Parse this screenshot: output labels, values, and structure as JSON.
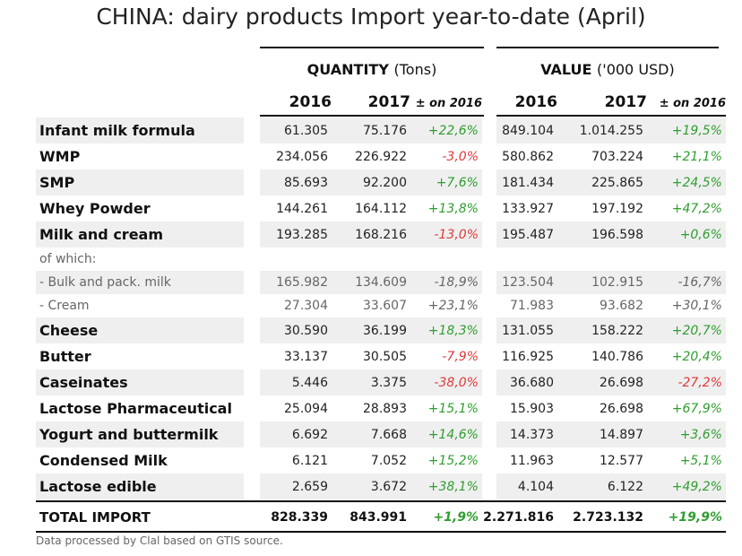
{
  "title": "CHINA: dairy products Import year-to-date (April)",
  "quantity": {
    "label": "QUANTITY",
    "unit": "(Tons)"
  },
  "value": {
    "label": "VALUE",
    "unit": "('000 USD)"
  },
  "col_headers": {
    "y2016": "2016",
    "y2017": "2017",
    "change": "± on 2016"
  },
  "rows": [
    {
      "label": "Infant milk formula",
      "q16": "61.305",
      "q17": "75.176",
      "qc": "+22,6%",
      "v16": "849.104",
      "v17": "1.014.255",
      "vc": "+19,5%"
    },
    {
      "label": "WMP",
      "q16": "234.056",
      "q17": "226.922",
      "qc": "-3,0%",
      "v16": "580.862",
      "v17": "703.224",
      "vc": "+21,1%"
    },
    {
      "label": "SMP",
      "q16": "85.693",
      "q17": "92.200",
      "qc": "+7,6%",
      "v16": "181.434",
      "v17": "225.865",
      "vc": "+24,5%"
    },
    {
      "label": "Whey Powder",
      "q16": "144.261",
      "q17": "164.112",
      "qc": "+13,8%",
      "v16": "133.927",
      "v17": "197.192",
      "vc": "+47,2%"
    },
    {
      "label": "Milk and cream",
      "q16": "193.285",
      "q17": "168.216",
      "qc": "-13,0%",
      "v16": "195.487",
      "v17": "196.598",
      "vc": "+0,6%"
    },
    {
      "label": "of which:",
      "q16": "",
      "q17": "",
      "qc": "",
      "v16": "",
      "v17": "",
      "vc": ""
    },
    {
      "label": "- Bulk and pack. milk",
      "q16": "165.982",
      "q17": "134.609",
      "qc": "-18,9%",
      "v16": "123.504",
      "v17": "102.915",
      "vc": "-16,7%"
    },
    {
      "label": "- Cream",
      "q16": "27.304",
      "q17": "33.607",
      "qc": "+23,1%",
      "v16": "71.983",
      "v17": "93.682",
      "vc": "+30,1%"
    },
    {
      "label": "Cheese",
      "q16": "30.590",
      "q17": "36.199",
      "qc": "+18,3%",
      "v16": "131.055",
      "v17": "158.222",
      "vc": "+20,7%"
    },
    {
      "label": "Butter",
      "q16": "33.137",
      "q17": "30.505",
      "qc": "-7,9%",
      "v16": "116.925",
      "v17": "140.786",
      "vc": "+20,4%"
    },
    {
      "label": "Caseinates",
      "q16": "5.446",
      "q17": "3.375",
      "qc": "-38,0%",
      "v16": "36.680",
      "v17": "26.698",
      "vc": "-27,2%"
    },
    {
      "label": "Lactose Pharmaceutical",
      "q16": "25.094",
      "q17": "28.893",
      "qc": "+15,1%",
      "v16": "15.903",
      "v17": "26.698",
      "vc": "+67,9%"
    },
    {
      "label": "Yogurt and buttermilk",
      "q16": "6.692",
      "q17": "7.668",
      "qc": "+14,6%",
      "v16": "14.373",
      "v17": "14.897",
      "vc": "+3,6%"
    },
    {
      "label": "Condensed Milk",
      "q16": "6.121",
      "q17": "7.052",
      "qc": "+15,2%",
      "v16": "11.963",
      "v17": "12.577",
      "vc": "+5,1%"
    },
    {
      "label": "Lactose edible",
      "q16": "2.659",
      "q17": "3.672",
      "qc": "+38,1%",
      "v16": "4.104",
      "v17": "6.122",
      "vc": "+49,2%"
    }
  ],
  "total": {
    "label": "TOTAL IMPORT",
    "q16": "828.339",
    "q17": "843.991",
    "qc": "+1,9%",
    "v16": "2.271.816",
    "v17": "2.723.132",
    "vc": "+19,9%"
  },
  "footnote": "Data processed by Clal based on GTIS source."
}
